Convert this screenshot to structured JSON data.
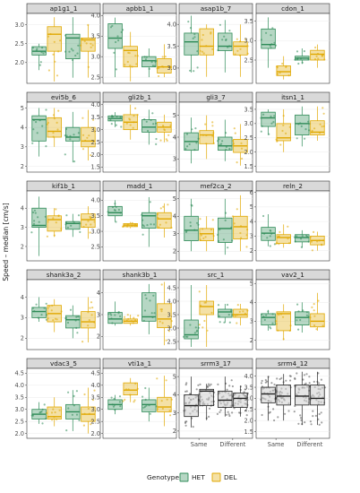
{
  "chart_data": {
    "type": "box",
    "ylabel": "Speed – median [cm/s]",
    "categories": [
      "Same",
      "Different"
    ],
    "legend": {
      "title": "Genotype",
      "position": "bottom",
      "entries": [
        {
          "name": "HET",
          "color": "#2e8b57"
        },
        {
          "name": "DEL",
          "color": "#e0a800"
        }
      ]
    },
    "colors": {
      "HET": "#2e8b57",
      "DEL": "#e0a800",
      "srrm_fill": "#d8d8d8"
    },
    "panels": [
      {
        "title": "ap1g1_1",
        "yticks": [
          2.0,
          2.5,
          3.0
        ],
        "ylim": [
          1.45,
          3.3
        ],
        "boxes": {
          "Same": {
            "HET": [
              1.8,
              2.2,
              2.3,
              2.42,
              2.5
            ],
            "DEL": [
              1.5,
              2.3,
              2.75,
              2.95,
              3.2
            ]
          },
          "Different": {
            "HET": [
              1.6,
              2.1,
              2.65,
              2.75,
              3.2
            ],
            "DEL": [
              1.6,
              2.3,
              2.6,
              2.65,
              3.0
            ]
          }
        }
      },
      {
        "title": "apbb1_1",
        "yticks": [
          2.5,
          3.0,
          3.5,
          4.0
        ],
        "ylim": [
          2.35,
          4.05
        ],
        "boxes": {
          "Same": {
            "HET": [
              2.5,
              3.2,
              3.45,
              3.8,
              3.95
            ],
            "DEL": [
              2.4,
              2.75,
              3.15,
              3.25,
              3.6
            ]
          },
          "Different": {
            "HET": [
              2.5,
              2.75,
              2.9,
              3.0,
              3.2
            ],
            "DEL": [
              2.5,
              2.6,
              2.75,
              2.95,
              3.3
            ]
          }
        }
      },
      {
        "title": "asap1b_7",
        "yticks": [
          3.0,
          3.5,
          4.0
        ],
        "ylim": [
          2.65,
          4.25
        ],
        "boxes": {
          "Same": {
            "HET": [
              2.9,
              3.3,
              3.6,
              3.8,
              4.2
            ],
            "DEL": [
              2.8,
              3.3,
              3.5,
              3.9,
              4.0
            ]
          },
          "Different": {
            "HET": [
              2.9,
              3.4,
              3.5,
              3.8,
              4.1
            ],
            "DEL": [
              2.8,
              3.3,
              3.5,
              3.6,
              4.0
            ]
          }
        }
      },
      {
        "title": "cdon_1",
        "yticks": [
          2.5,
          3.0,
          3.5
        ],
        "ylim": [
          1.9,
          3.7
        ],
        "boxes": {
          "Same": {
            "HET": [
              2.3,
              2.8,
              2.9,
              3.3,
              3.6
            ],
            "DEL": [
              2.0,
              2.1,
              2.2,
              2.35,
              2.6
            ]
          },
          "Different": {
            "HET": [
              2.4,
              2.5,
              2.55,
              2.6,
              2.8
            ],
            "DEL": [
              2.3,
              2.5,
              2.65,
              2.75,
              2.9
            ]
          }
        }
      },
      {
        "title": "evi5b_6",
        "yticks": [
          2,
          3,
          4,
          5
        ],
        "ylim": [
          1.7,
          5.3
        ],
        "boxes": {
          "Same": {
            "HET": [
              2.5,
              3.3,
              4.4,
              4.6,
              5.0
            ],
            "DEL": [
              3.0,
              3.5,
              3.8,
              4.5,
              5.0
            ]
          },
          "Different": {
            "HET": [
              2.2,
              3.3,
              3.5,
              4.0,
              4.8
            ],
            "DEL": [
              2.3,
              3.0,
              3.3,
              4.0,
              4.9
            ]
          }
        }
      },
      {
        "title": "gli2b_1",
        "yticks": [
          1.5,
          2.0,
          2.5,
          3.0,
          3.5,
          4.0
        ],
        "ylim": [
          1.3,
          4.1
        ],
        "boxes": {
          "Same": {
            "HET": [
              3.1,
              3.35,
              3.45,
              3.55,
              3.7
            ],
            "DEL": [
              2.6,
              3.0,
              3.3,
              3.6,
              4.0
            ]
          },
          "Different": {
            "HET": [
              2.4,
              2.9,
              3.1,
              3.4,
              3.8
            ],
            "DEL": [
              2.5,
              2.9,
              3.1,
              3.3,
              3.6
            ]
          }
        }
      },
      {
        "title": "gli3_7",
        "yticks": [
          3,
          4,
          5
        ],
        "ylim": [
          2.4,
          5.6
        ],
        "boxes": {
          "Same": {
            "HET": [
              2.8,
              3.4,
              3.8,
              4.2,
              4.9
            ],
            "DEL": [
              3.0,
              3.7,
              4.1,
              4.3,
              5.0
            ]
          },
          "Different": {
            "HET": [
              2.9,
              3.4,
              3.6,
              4.0,
              4.8
            ],
            "DEL": [
              2.7,
              3.3,
              3.6,
              3.9,
              4.6
            ]
          }
        }
      },
      {
        "title": "itsn1_1",
        "yticks": [
          1.5,
          2.0,
          2.5,
          3.0,
          3.5
        ],
        "ylim": [
          1.3,
          3.75
        ],
        "boxes": {
          "Same": {
            "HET": [
              2.6,
              2.9,
              3.2,
              3.4,
              3.5
            ],
            "DEL": [
              2.0,
              2.4,
              2.5,
              3.0,
              3.5
            ]
          },
          "Different": {
            "HET": [
              2.2,
              2.6,
              3.0,
              3.3,
              3.6
            ],
            "DEL": [
              2.4,
              2.6,
              2.7,
              3.1,
              3.6
            ]
          }
        }
      },
      {
        "title": "kif1b_1",
        "yticks": [
          2,
          3,
          4
        ],
        "ylim": [
          1.25,
          4.9
        ],
        "boxes": {
          "Same": {
            "HET": [
              1.5,
              3.0,
              3.1,
              4.0,
              4.6
            ],
            "DEL": [
              2.5,
              2.8,
              3.4,
              3.6,
              4.0
            ]
          },
          "Different": {
            "HET": [
              2.5,
              2.9,
              3.2,
              3.3,
              3.7
            ],
            "DEL": [
              2.4,
              3.0,
              3.4,
              3.7,
              4.1
            ]
          }
        }
      },
      {
        "title": "madd_1",
        "yticks": [
          2.5,
          3.0,
          3.5,
          4.0
        ],
        "ylim": [
          2.05,
          4.3
        ],
        "boxes": {
          "Same": {
            "HET": [
              3.3,
              3.5,
              3.6,
              3.8,
              4.0
            ],
            "DEL": [
              3.1,
              3.15,
              3.2,
              3.25,
              3.3
            ]
          },
          "Different": {
            "HET": [
              2.5,
              3.1,
              3.5,
              3.6,
              4.1
            ],
            "DEL": [
              2.8,
              3.1,
              3.4,
              3.6,
              3.9
            ]
          }
        }
      },
      {
        "title": "mef2ca_2",
        "yticks": [
          2,
          3,
          4,
          5
        ],
        "ylim": [
          1.45,
          5.45
        ],
        "boxes": {
          "Same": {
            "HET": [
              2.0,
              2.6,
              3.2,
              4.0,
              5.0
            ],
            "DEL": [
              2.0,
              2.6,
              3.0,
              3.3,
              4.0
            ]
          },
          "Different": {
            "HET": [
              1.8,
              2.5,
              3.3,
              3.9,
              5.0
            ],
            "DEL": [
              2.0,
              2.7,
              3.4,
              4.0,
              5.2
            ]
          }
        }
      },
      {
        "title": "reln_2",
        "yticks": [
          2,
          3,
          4,
          5,
          6
        ],
        "ylim": [
          1.3,
          6.1
        ],
        "boxes": {
          "Same": {
            "HET": [
              2.3,
              2.7,
              3.2,
              3.6,
              4.5
            ],
            "DEL": [
              2.2,
              2.5,
              2.9,
              3.1,
              3.8
            ]
          },
          "Different": {
            "HET": [
              2.2,
              2.6,
              2.9,
              3.1,
              3.4
            ],
            "DEL": [
              2.0,
              2.4,
              2.7,
              3.0,
              3.3
            ]
          }
        }
      },
      {
        "title": "shank3a_2",
        "yticks": [
          2,
          3,
          4
        ],
        "ylim": [
          1.45,
          4.85
        ],
        "boxes": {
          "Same": {
            "HET": [
              2.8,
              3.0,
              3.3,
              3.5,
              4.0
            ],
            "DEL": [
              2.3,
              2.8,
              3.2,
              3.6,
              3.9
            ]
          },
          "Different": {
            "HET": [
              2.0,
              2.5,
              2.9,
              3.1,
              3.6
            ],
            "DEL": [
              1.8,
              2.5,
              2.8,
              3.3,
              4.0
            ]
          }
        }
      },
      {
        "title": "shank3b_1",
        "yticks": [
          2,
          3,
          4
        ],
        "ylim": [
          1.4,
          4.6
        ],
        "boxes": {
          "Same": {
            "HET": [
              2.5,
              2.6,
              2.8,
              3.1,
              3.6
            ],
            "DEL": [
              2.5,
              2.6,
              2.7,
              2.8,
              3.0
            ]
          },
          "Different": {
            "HET": [
              2.1,
              2.7,
              2.9,
              4.0,
              4.4
            ],
            "DEL": [
              1.6,
              2.4,
              2.8,
              3.5,
              4.5
            ]
          }
        }
      },
      {
        "title": "src_1",
        "yticks": [
          2.5,
          3.0,
          3.5,
          4.0,
          4.5
        ],
        "ylim": [
          2.2,
          4.8
        ],
        "boxes": {
          "Same": {
            "HET": [
              2.3,
              2.6,
              2.75,
              3.3,
              4.6
            ],
            "DEL": [
              2.3,
              3.5,
              3.8,
              4.0,
              4.6
            ]
          },
          "Different": {
            "HET": [
              3.2,
              3.4,
              3.6,
              3.7,
              3.9
            ],
            "DEL": [
              3.1,
              3.4,
              3.5,
              3.7,
              3.9
            ]
          }
        }
      },
      {
        "title": "vav2_1",
        "yticks": [
          2,
          3,
          4,
          5
        ],
        "ylim": [
          1.5,
          5.2
        ],
        "boxes": {
          "Same": {
            "HET": [
              2.5,
              2.8,
              3.2,
              3.4,
              3.6
            ],
            "DEL": [
              2.0,
              2.5,
              3.4,
              3.5,
              3.9
            ]
          },
          "Different": {
            "HET": [
              2.4,
              2.8,
              3.2,
              3.5,
              4.0
            ],
            "DEL": [
              2.5,
              2.7,
              3.0,
              3.4,
              4.5
            ]
          }
        }
      },
      {
        "title": "vdac3_5",
        "yticks": [
          2.0,
          2.5,
          3.0,
          3.5,
          4.0,
          4.5
        ],
        "ylim": [
          1.8,
          4.7
        ],
        "boxes": {
          "Same": {
            "HET": [
              2.4,
              2.6,
              2.8,
              3.0,
              3.3
            ],
            "DEL": [
              2.3,
              2.6,
              2.7,
              3.1,
              3.5
            ]
          },
          "Different": {
            "HET": [
              2.1,
              2.6,
              2.9,
              3.2,
              3.8
            ],
            "DEL": [
              2.0,
              2.5,
              2.8,
              3.1,
              3.9
            ]
          }
        }
      },
      {
        "title": "vti1a_1",
        "yticks": [
          2.0,
          2.5,
          3.0,
          3.5,
          4.0,
          4.5
        ],
        "ylim": [
          1.8,
          4.7
        ],
        "boxes": {
          "Same": {
            "HET": [
              2.8,
              3.0,
              3.2,
              3.4,
              3.6
            ],
            "DEL": [
              3.3,
              3.6,
              3.8,
              4.1,
              4.3
            ]
          },
          "Different": {
            "HET": [
              2.5,
              2.9,
              3.2,
              3.4,
              3.9
            ],
            "DEL": [
              2.3,
              2.9,
              3.1,
              3.5,
              4.4
            ]
          }
        }
      },
      {
        "title": "srrm3_17",
        "yticks": [
          2,
          3,
          4,
          5
        ],
        "ylim": [
          1.6,
          5.45
        ],
        "boxes": {
          "Same": {
            "HET": [
              2.2,
              2.8,
              3.4,
              4.0,
              5.0
            ],
            "DEL": [
              2.6,
              3.4,
              4.2,
              4.3,
              4.6
            ]
          },
          "Different": {
            "HET": [
              2.8,
              3.3,
              3.7,
              4.2,
              5.0
            ],
            "DEL": [
              2.8,
              3.3,
              3.8,
              4.1,
              4.5
            ]
          }
        }
      },
      {
        "title": "srrm4_12",
        "yticks": [
          1.5,
          2.0,
          2.5,
          3.0,
          3.5,
          4.0
        ],
        "ylim": [
          1.2,
          4.35
        ],
        "boxes": {
          "Same": {
            "HET": [
              2.0,
              2.8,
              3.2,
              3.5,
              4.0
            ],
            "DEL": [
              2.0,
              2.7,
              3.1,
              3.6,
              4.1
            ]
          },
          "Different": {
            "HET": [
              1.8,
              2.7,
              3.1,
              3.6,
              4.2
            ],
            "DEL": [
              1.8,
              2.7,
              3.0,
              3.6,
              4.2
            ]
          }
        }
      }
    ]
  }
}
